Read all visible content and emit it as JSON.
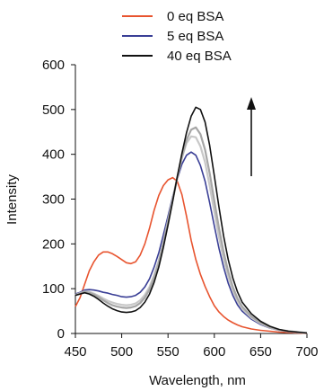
{
  "chart_data": {
    "type": "line",
    "title": "",
    "xlabel": "Wavelength, nm",
    "ylabel": "Intensity",
    "xlim": [
      450,
      700
    ],
    "ylim": [
      0,
      600
    ],
    "x_ticks": [
      450,
      500,
      550,
      600,
      650,
      700
    ],
    "y_ticks": [
      0,
      100,
      200,
      300,
      400,
      500,
      600
    ],
    "grid": false,
    "legend_position": "top",
    "annotation": "upward arrow",
    "series": [
      {
        "name": "0 eq BSA",
        "color": "#e8542f",
        "in_legend": true,
        "x": [
          450,
          455,
          460,
          465,
          470,
          475,
          480,
          485,
          490,
          495,
          500,
          505,
          510,
          515,
          520,
          525,
          530,
          535,
          540,
          545,
          550,
          555,
          560,
          565,
          570,
          575,
          580,
          585,
          590,
          595,
          600,
          605,
          610,
          615,
          620,
          625,
          630,
          640,
          650,
          660,
          670,
          680,
          690,
          700
        ],
        "y": [
          60,
          80,
          110,
          140,
          160,
          175,
          182,
          182,
          178,
          172,
          165,
          158,
          156,
          160,
          175,
          200,
          235,
          275,
          308,
          330,
          343,
          348,
          340,
          310,
          262,
          208,
          165,
          132,
          105,
          82,
          62,
          48,
          38,
          30,
          24,
          19,
          15,
          10,
          7,
          5,
          3,
          2,
          1,
          0
        ]
      },
      {
        "name": "5 eq BSA",
        "color": "#3a3f96",
        "in_legend": true,
        "x": [
          450,
          455,
          460,
          465,
          470,
          475,
          480,
          485,
          490,
          495,
          500,
          505,
          510,
          515,
          520,
          525,
          530,
          535,
          540,
          545,
          550,
          555,
          560,
          565,
          570,
          575,
          580,
          585,
          590,
          595,
          600,
          605,
          610,
          615,
          620,
          625,
          630,
          640,
          650,
          660,
          670,
          680,
          690,
          700
        ],
        "y": [
          88,
          92,
          97,
          98,
          97,
          95,
          92,
          90,
          87,
          85,
          82,
          81,
          82,
          85,
          92,
          104,
          122,
          148,
          180,
          220,
          262,
          305,
          345,
          378,
          398,
          405,
          398,
          375,
          340,
          292,
          240,
          190,
          148,
          112,
          85,
          64,
          50,
          32,
          20,
          12,
          7,
          4,
          2,
          1
        ]
      },
      {
        "name": "light gray",
        "color": "#c8c8c8",
        "in_legend": false,
        "x": [
          450,
          455,
          460,
          465,
          470,
          475,
          480,
          485,
          490,
          495,
          500,
          505,
          510,
          515,
          520,
          525,
          530,
          535,
          540,
          545,
          550,
          555,
          560,
          565,
          570,
          575,
          580,
          585,
          590,
          595,
          600,
          605,
          610,
          615,
          620,
          625,
          630,
          640,
          650,
          660,
          670,
          680,
          690,
          700
        ],
        "y": [
          86,
          90,
          94,
          93,
          89,
          84,
          78,
          73,
          69,
          66,
          64,
          63,
          64,
          67,
          74,
          86,
          104,
          130,
          163,
          205,
          252,
          300,
          348,
          392,
          425,
          440,
          438,
          418,
          382,
          330,
          272,
          215,
          166,
          126,
          95,
          72,
          55,
          35,
          22,
          13,
          8,
          5,
          3,
          1
        ]
      },
      {
        "name": "gray",
        "color": "#a6a6a6",
        "in_legend": false,
        "x": [
          450,
          455,
          460,
          465,
          470,
          475,
          480,
          485,
          490,
          495,
          500,
          505,
          510,
          515,
          520,
          525,
          530,
          535,
          540,
          545,
          550,
          555,
          560,
          565,
          570,
          575,
          580,
          585,
          590,
          595,
          600,
          605,
          610,
          615,
          620,
          625,
          630,
          640,
          650,
          660,
          670,
          680,
          690,
          700
        ],
        "y": [
          86,
          89,
          93,
          91,
          87,
          81,
          74,
          68,
          63,
          60,
          58,
          57,
          58,
          61,
          68,
          80,
          98,
          124,
          157,
          200,
          248,
          298,
          348,
          395,
          432,
          455,
          460,
          445,
          410,
          358,
          296,
          235,
          182,
          138,
          104,
          78,
          60,
          38,
          24,
          14,
          8,
          5,
          3,
          1
        ]
      },
      {
        "name": "40 eq BSA",
        "color": "#111111",
        "in_legend": true,
        "x": [
          450,
          455,
          460,
          465,
          470,
          475,
          480,
          485,
          490,
          495,
          500,
          505,
          510,
          515,
          520,
          525,
          530,
          535,
          540,
          545,
          550,
          555,
          560,
          565,
          570,
          575,
          580,
          585,
          590,
          595,
          600,
          605,
          610,
          615,
          620,
          625,
          630,
          640,
          650,
          660,
          670,
          680,
          690,
          700
        ],
        "y": [
          85,
          88,
          91,
          88,
          83,
          76,
          68,
          61,
          55,
          51,
          48,
          47,
          48,
          51,
          58,
          70,
          88,
          114,
          148,
          192,
          242,
          295,
          350,
          402,
          448,
          485,
          505,
          500,
          472,
          420,
          352,
          282,
          218,
          165,
          124,
          93,
          70,
          44,
          27,
          16,
          9,
          5,
          3,
          1
        ]
      }
    ]
  }
}
